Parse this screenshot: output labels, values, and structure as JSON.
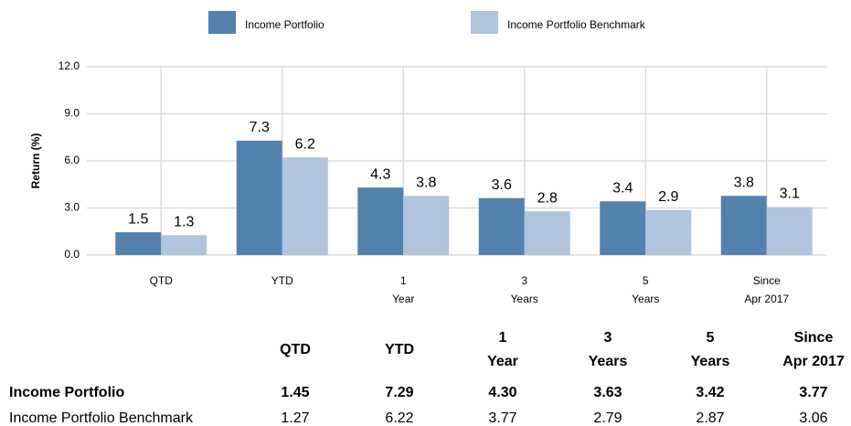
{
  "chart_data": {
    "type": "bar",
    "y_label": "Return (%)",
    "categories": [
      "QTD",
      "YTD",
      "1\nYear",
      "3\nYears",
      "5\nYears",
      "Since\nApr 2017"
    ],
    "series": [
      {
        "name": "Income Portfolio",
        "color": "#5282ad",
        "values": [
          1.45,
          7.29,
          4.3,
          3.63,
          3.42,
          3.77
        ],
        "value_labels": [
          "1.5",
          "7.3",
          "4.3",
          "3.6",
          "3.4",
          "3.8"
        ]
      },
      {
        "name": "Income Portfolio Benchmark",
        "color": "#b0c4de",
        "values": [
          1.27,
          6.22,
          3.77,
          2.79,
          2.87,
          3.06
        ],
        "value_labels": [
          "1.3",
          "6.2",
          "3.8",
          "2.8",
          "2.9",
          "3.1"
        ]
      }
    ],
    "ylim": [
      0,
      12
    ],
    "yticks": [
      {
        "value": 0,
        "label": "0.0"
      },
      {
        "value": 3,
        "label": "3.0"
      },
      {
        "value": 6,
        "label": "6.0"
      },
      {
        "value": 9,
        "label": "9.0"
      },
      {
        "value": 12,
        "label": "12.0"
      }
    ],
    "grid": true,
    "legend": "top"
  },
  "table": {
    "rows": [
      [
        "1.45",
        "7.29",
        "4.30",
        "3.63",
        "3.42",
        "3.77"
      ],
      [
        "1.27",
        "6.22",
        "3.77",
        "2.79",
        "2.87",
        "3.06"
      ]
    ]
  }
}
